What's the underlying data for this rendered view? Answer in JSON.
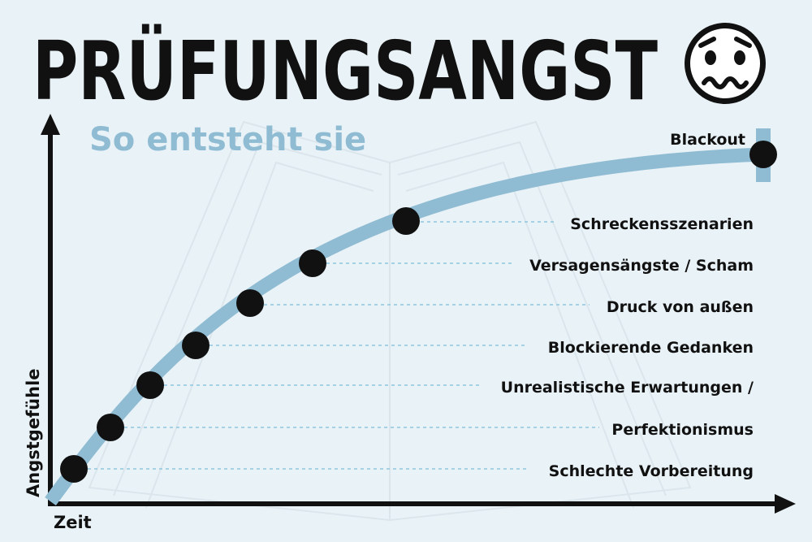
{
  "header": {
    "title": "PRÜFUNGSANGST",
    "subtitle": "So entsteht sie",
    "icon": "anxious-face-icon"
  },
  "axes": {
    "x_label": "Zeit",
    "y_label": "Angstgefühle"
  },
  "stages": [
    {
      "label": "Schlechte Vorbereitung"
    },
    {
      "label": "Perfektionismus"
    },
    {
      "label": "Unrealistische Erwartungen /"
    },
    {
      "label": "Blockierende Gedanken"
    },
    {
      "label": "Druck von außen"
    },
    {
      "label": "Versagensängste / Scham"
    },
    {
      "label": "Schreckensszenarien"
    },
    {
      "label": "Blackout"
    }
  ],
  "colors": {
    "background": "#e9f2f7",
    "curve": "#8fbcd3",
    "guide": "#8fc6de",
    "text": "#111111"
  }
}
